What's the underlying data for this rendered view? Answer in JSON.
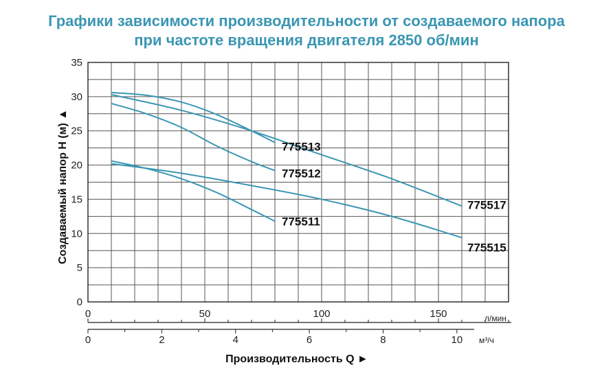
{
  "title_line1": "Графики зависимости производительности от создаваемого напора",
  "title_line2": "при частоте вращения двигателя 2850 об/мин",
  "colors": {
    "title": "#3a96b3",
    "curve": "#3a96b3",
    "grid": "#555555"
  },
  "chart_data": {
    "type": "line",
    "title": "Графики зависимости производительности от создаваемого напора при частоте вращения двигателя 2850 об/мин",
    "ylabel": "Создаваемый напор H (м) ▲",
    "xlabel": "Производительность Q ►",
    "x_unit_primary": "л/мин",
    "x_unit_secondary": "м³/ч",
    "xlim": [
      0,
      180
    ],
    "ylim": [
      0,
      35
    ],
    "x_ticks": [
      "0",
      "50",
      "100",
      "150"
    ],
    "x_ticks_values": [
      0,
      50,
      100,
      150
    ],
    "x2_ticks": [
      "0",
      "2",
      "4",
      "6",
      "8",
      "10"
    ],
    "x2_ticks_values": [
      0,
      2,
      4,
      6,
      8,
      10
    ],
    "y_ticks": [
      "0",
      "5",
      "10",
      "15",
      "20",
      "25",
      "30",
      "35"
    ],
    "y_ticks_values": [
      0,
      5,
      10,
      15,
      20,
      25,
      30,
      35
    ],
    "grid": true,
    "series": [
      {
        "name": "775513",
        "x": [
          10,
          25,
          40,
          55,
          70,
          80
        ],
        "y": [
          30.6,
          30.2,
          29.2,
          27.4,
          25.0,
          23.3
        ]
      },
      {
        "name": "775512",
        "x": [
          10,
          25,
          40,
          55,
          70,
          80
        ],
        "y": [
          29.0,
          27.5,
          25.5,
          22.8,
          20.5,
          19.2
        ]
      },
      {
        "name": "775517",
        "x": [
          10,
          40,
          70,
          100,
          130,
          160
        ],
        "y": [
          30.3,
          28.0,
          25.0,
          21.5,
          18.0,
          14.0
        ]
      },
      {
        "name": "775511",
        "x": [
          10,
          25,
          40,
          55,
          70,
          80
        ],
        "y": [
          20.6,
          19.5,
          18.0,
          16.0,
          13.5,
          11.8
        ]
      },
      {
        "name": "775515",
        "x": [
          10,
          40,
          70,
          100,
          130,
          160
        ],
        "y": [
          20.2,
          18.8,
          17.0,
          15.0,
          12.5,
          9.4
        ]
      }
    ]
  }
}
